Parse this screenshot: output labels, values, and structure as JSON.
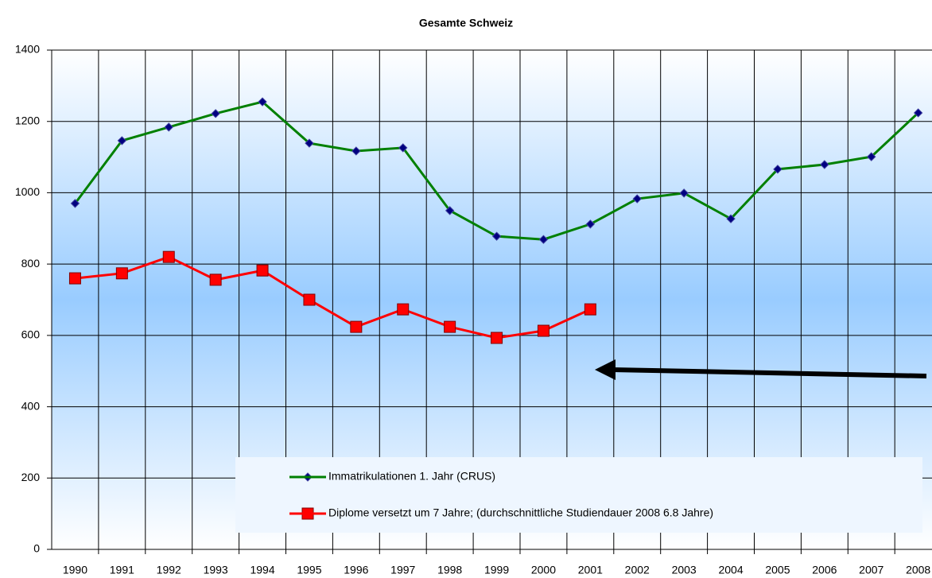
{
  "chart_data": {
    "type": "line",
    "title": "Gesamte Schweiz",
    "categories": [
      "1990",
      "1991",
      "1992",
      "1993",
      "1994",
      "1995",
      "1996",
      "1997",
      "1998",
      "1999",
      "2000",
      "2001",
      "2002",
      "2003",
      "2004",
      "2005",
      "2006",
      "2007",
      "2008"
    ],
    "series": [
      {
        "name": "Immatrikulationen 1. Jahr (CRUS)",
        "color": "#008000",
        "marker": "diamond",
        "values": [
          970,
          1146,
          1184,
          1222,
          1255,
          1139,
          1117,
          1126,
          950,
          878,
          869,
          912,
          983,
          999,
          927,
          1066,
          1079,
          1101,
          1224
        ]
      },
      {
        "name": "Diplome versetzt um 7 Jahre; (durchschnittliche Studiendauer 2008 6.8 Jahre)",
        "color": "#ff0000",
        "marker": "square",
        "values": [
          760,
          774,
          820,
          756,
          782,
          700,
          624,
          673,
          624,
          593,
          613,
          673,
          null,
          null,
          null,
          null,
          null,
          null,
          null
        ]
      }
    ],
    "ylim": [
      0,
      1400
    ],
    "yticks": [
      0,
      200,
      400,
      600,
      800,
      1000,
      1200,
      1400
    ],
    "grid": true
  }
}
